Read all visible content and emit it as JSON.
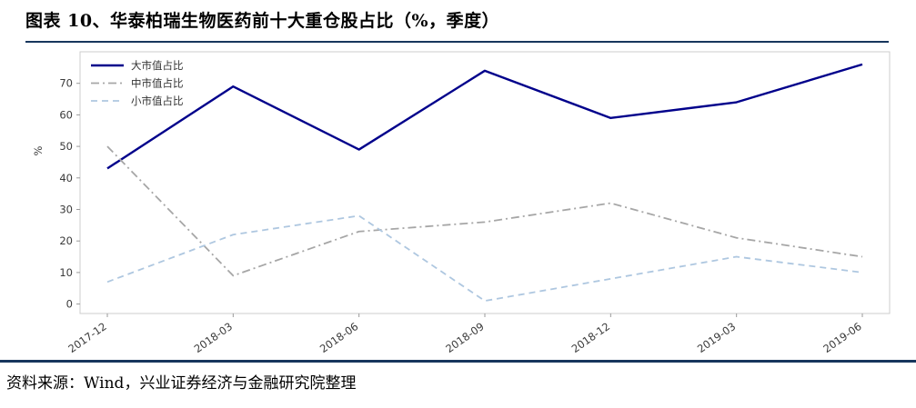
{
  "header": {
    "title": "图表 10、华泰柏瑞生物医药前十大重仓股占比（%，季度）"
  },
  "footer": {
    "source": "资料来源：Wind，兴业证券经济与金融研究院整理"
  },
  "colors": {
    "rule": "#17365D",
    "plot_border": "#CCCCCC",
    "tick_text": "#3A3A3A",
    "legend_text": "#333333"
  },
  "chart_data": {
    "type": "line",
    "title": "",
    "xlabel": "",
    "ylabel": "%",
    "categories": [
      "2017-12",
      "2018-03",
      "2018-06",
      "2018-09",
      "2018-12",
      "2019-03",
      "2019-06"
    ],
    "series": [
      {
        "name": "大市值占比",
        "color": "#00008B",
        "dash": "solid",
        "values": [
          43,
          69,
          49,
          74,
          59,
          64,
          76
        ]
      },
      {
        "name": "中市值占比",
        "color": "#A6A6A6",
        "dash": "dashdot",
        "values": [
          50,
          9,
          23,
          26,
          32,
          21,
          15
        ]
      },
      {
        "name": "小市值占比",
        "color": "#AEC7E0",
        "dash": "dashed",
        "values": [
          7,
          22,
          28,
          1,
          8,
          15,
          10
        ]
      }
    ],
    "yticks": [
      0,
      10,
      20,
      30,
      40,
      50,
      60,
      70
    ],
    "ylim": [
      -3,
      80
    ],
    "grid": false,
    "legend_position": "upper left"
  }
}
